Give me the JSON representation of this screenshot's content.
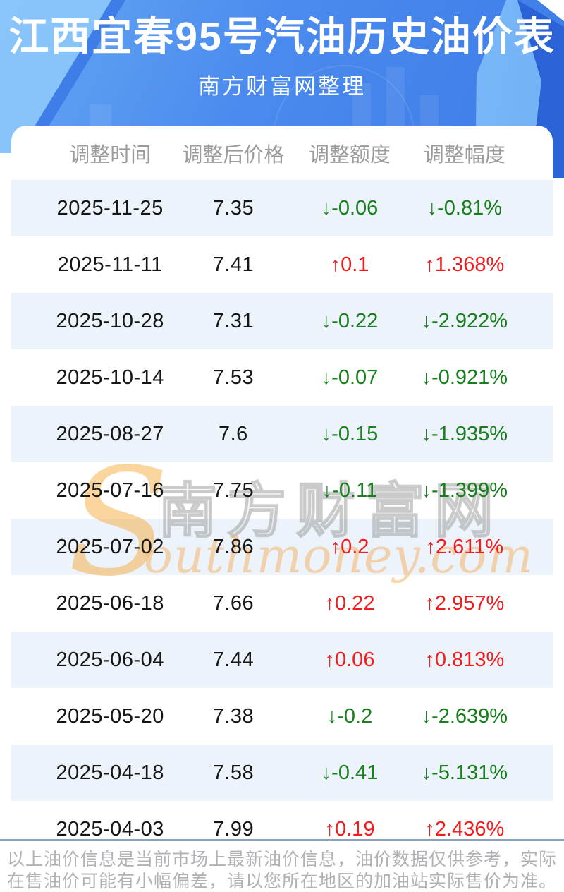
{
  "header": {
    "title": "江西宜春95号汽油历史油价表",
    "subtitle": "南方财富网整理"
  },
  "chart_data": {
    "type": "table",
    "title": "江西宜春95号汽油历史油价表",
    "subtitle": "南方财富网整理",
    "columns": [
      "调整时间",
      "调整后价格",
      "调整额度",
      "调整幅度"
    ],
    "rows": [
      {
        "date": "2025-11-25",
        "price": "7.35",
        "change": "↓-0.06",
        "pct": "↓-0.81%",
        "dir": "down"
      },
      {
        "date": "2025-11-11",
        "price": "7.41",
        "change": "↑0.1",
        "pct": "↑1.368%",
        "dir": "up"
      },
      {
        "date": "2025-10-28",
        "price": "7.31",
        "change": "↓-0.22",
        "pct": "↓-2.922%",
        "dir": "down"
      },
      {
        "date": "2025-10-14",
        "price": "7.53",
        "change": "↓-0.07",
        "pct": "↓-0.921%",
        "dir": "down"
      },
      {
        "date": "2025-08-27",
        "price": "7.6",
        "change": "↓-0.15",
        "pct": "↓-1.935%",
        "dir": "down"
      },
      {
        "date": "2025-07-16",
        "price": "7.75",
        "change": "↓-0.11",
        "pct": "↓-1.399%",
        "dir": "down"
      },
      {
        "date": "2025-07-02",
        "price": "7.86",
        "change": "↑0.2",
        "pct": "↑2.611%",
        "dir": "up"
      },
      {
        "date": "2025-06-18",
        "price": "7.66",
        "change": "↑0.22",
        "pct": "↑2.957%",
        "dir": "up"
      },
      {
        "date": "2025-06-04",
        "price": "7.44",
        "change": "↑0.06",
        "pct": "↑0.813%",
        "dir": "up"
      },
      {
        "date": "2025-05-20",
        "price": "7.38",
        "change": "↓-0.2",
        "pct": "↓-2.639%",
        "dir": "down"
      },
      {
        "date": "2025-04-18",
        "price": "7.58",
        "change": "↓-0.41",
        "pct": "↓-5.131%",
        "dir": "down"
      },
      {
        "date": "2025-04-03",
        "price": "7.99",
        "change": "↑0.19",
        "pct": "↑2.436%",
        "dir": "up"
      }
    ]
  },
  "watermark": {
    "initial": "S",
    "cn": "南方财富网",
    "en": "outhmoney.com"
  },
  "footer": {
    "line1": "以上油价信息是当前市场上最新油价信息，油价数据仅供参考，实际",
    "line2": "在售油价可能有小幅偏差，请以您所在地区的加油站实际售价为准。"
  },
  "colors": {
    "banner_blue": "#4585ea",
    "banner_light_blue": "#8ac6fa",
    "banner_dark_blue": "#2b63d6",
    "up_red": "#f31c1c",
    "down_green": "#17801d",
    "stripe": "#edf3fb",
    "divider": "#8aa0b8",
    "header_text": "#9b9b9b",
    "footer_text": "#b1b1b5",
    "watermark_orange": "#f6ac3e"
  }
}
